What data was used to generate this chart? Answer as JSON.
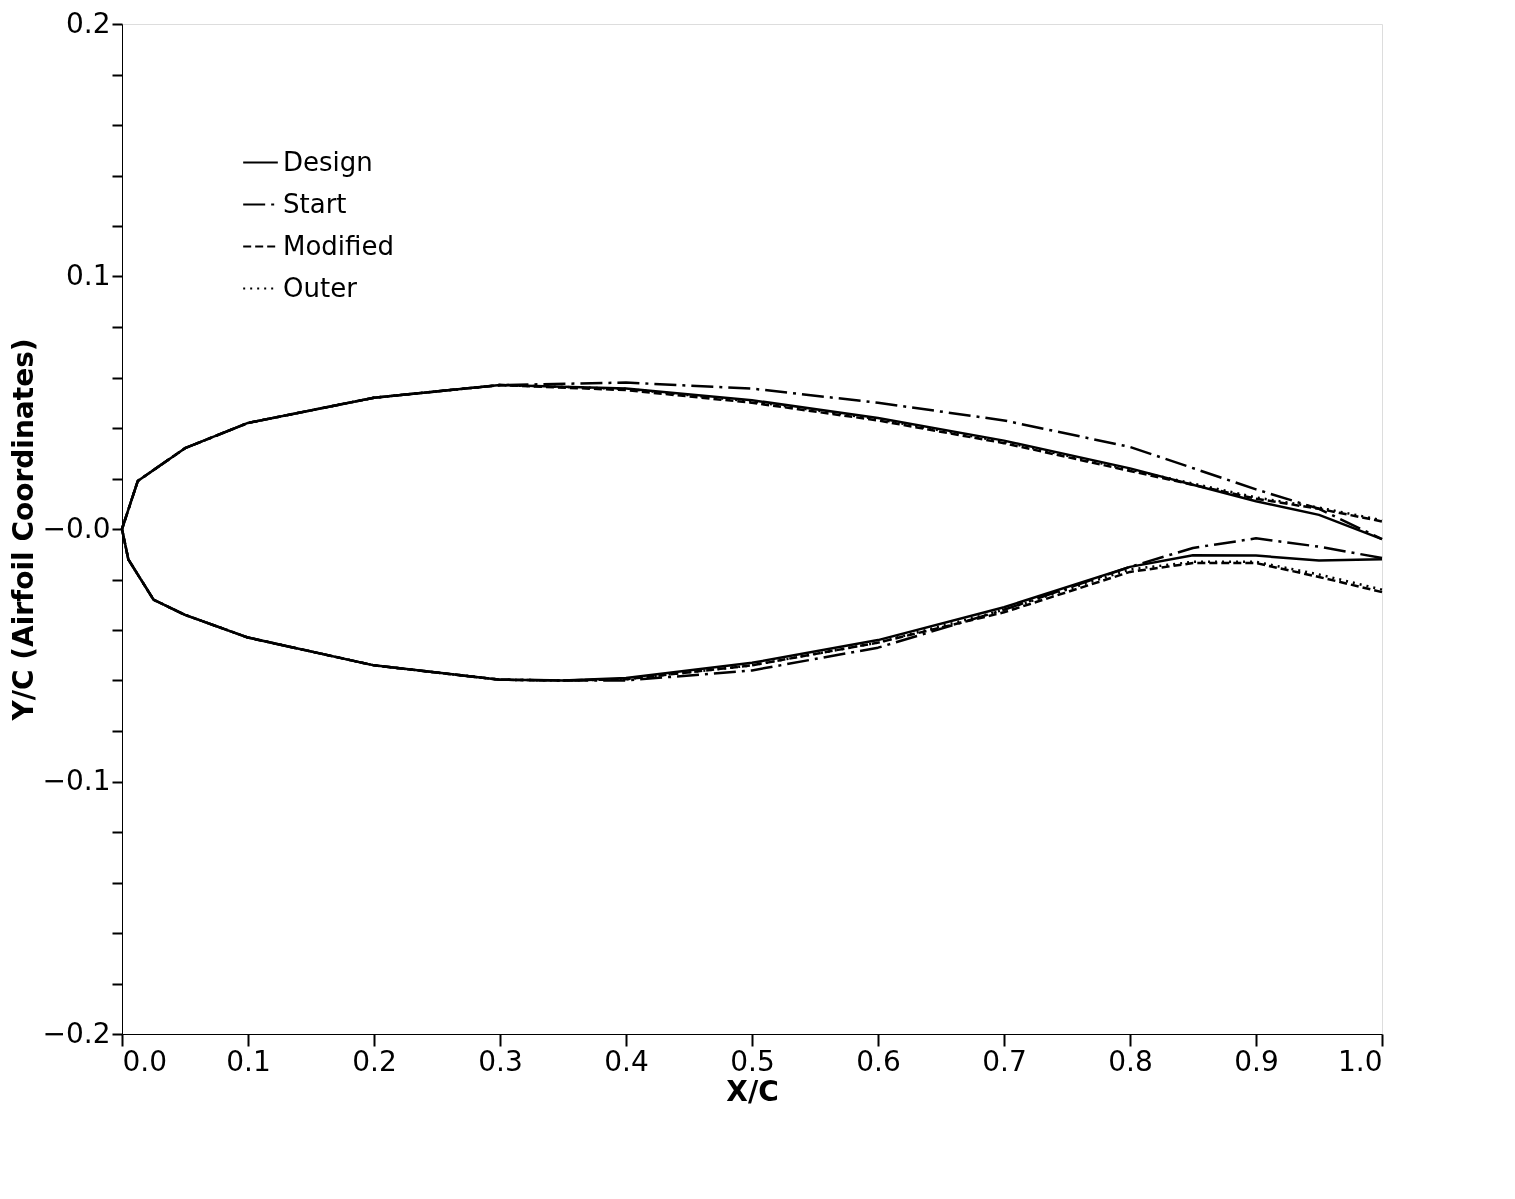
{
  "chart_data": {
    "type": "line",
    "xlabel": "X/C",
    "ylabel": "Y/C (Airfoil Coordinates)",
    "xlim": [
      0.0,
      1.0
    ],
    "ylim": [
      -0.2,
      0.2
    ],
    "xticks": [
      {
        "value": 0,
        "label": "0.0"
      },
      {
        "value": 0.1,
        "label": "0.1"
      },
      {
        "value": 0.2,
        "label": "0.2"
      },
      {
        "value": 0.3,
        "label": "0.3"
      },
      {
        "value": 0.4,
        "label": "0.4"
      },
      {
        "value": 0.5,
        "label": "0.5"
      },
      {
        "value": 0.6,
        "label": "0.6"
      },
      {
        "value": 0.7,
        "label": "0.7"
      },
      {
        "value": 0.8,
        "label": "0.8"
      },
      {
        "value": 0.9,
        "label": "0.9"
      },
      {
        "value": 1.0,
        "label": "1.0"
      }
    ],
    "yticks": [
      {
        "value": -0.2,
        "label": "−0.2"
      },
      {
        "value": -0.18,
        "label": null
      },
      {
        "value": -0.16,
        "label": null
      },
      {
        "value": -0.14,
        "label": null
      },
      {
        "value": -0.12,
        "label": null
      },
      {
        "value": -0.1,
        "label": "−0.1"
      },
      {
        "value": -0.08,
        "label": null
      },
      {
        "value": -0.06,
        "label": null
      },
      {
        "value": -0.04,
        "label": null
      },
      {
        "value": -0.02,
        "label": null
      },
      {
        "value": 0,
        "label": "−0.0"
      },
      {
        "value": 0.02,
        "label": null
      },
      {
        "value": 0.04,
        "label": null
      },
      {
        "value": 0.06,
        "label": null
      },
      {
        "value": 0.08,
        "label": null
      },
      {
        "value": 0.1,
        "label": "0.1"
      },
      {
        "value": 0.12,
        "label": null
      },
      {
        "value": 0.14,
        "label": null
      },
      {
        "value": 0.16,
        "label": null
      },
      {
        "value": 0.18,
        "label": null
      },
      {
        "value": 0.2,
        "label": "0.2"
      }
    ],
    "grid": false,
    "legend": "top left",
    "marker": "none",
    "series": [
      {
        "name": "Design",
        "color": "#000000",
        "line_style": "solid",
        "x": [
          1.0,
          0.95,
          0.9,
          0.85,
          0.8,
          0.7,
          0.6,
          0.5,
          0.4,
          0.35,
          0.3,
          0.2,
          0.1,
          0.05,
          0.025,
          0.005,
          0.0,
          0.0125,
          0.05,
          0.1,
          0.2,
          0.3,
          0.4,
          0.5,
          0.6,
          0.7,
          0.8,
          0.9,
          0.95,
          1.0
        ],
        "values": [
          -0.012,
          -0.0125,
          -0.0105,
          -0.0104,
          -0.015,
          -0.031,
          -0.044,
          -0.053,
          -0.059,
          -0.06,
          -0.0597,
          -0.054,
          -0.043,
          -0.034,
          -0.028,
          -0.012,
          0.0,
          0.019,
          0.032,
          0.042,
          0.052,
          0.057,
          0.0556,
          0.051,
          0.044,
          0.035,
          0.024,
          0.011,
          0.0056,
          -0.004
        ]
      },
      {
        "name": "Start",
        "color": "#000000",
        "line_style": "dashdot",
        "x": [
          1.0,
          0.95,
          0.9,
          0.85,
          0.8,
          0.7,
          0.6,
          0.5,
          0.4,
          0.35,
          0.3,
          0.2,
          0.1,
          0.05,
          0.025,
          0.005,
          0.0,
          0.0125,
          0.05,
          0.1,
          0.2,
          0.3,
          0.4,
          0.5,
          0.6,
          0.7,
          0.8,
          0.9,
          0.95,
          1.0
        ],
        "values": [
          -0.0115,
          -0.007,
          -0.0037,
          -0.0075,
          -0.015,
          -0.032,
          -0.047,
          -0.056,
          -0.06,
          -0.06,
          -0.0597,
          -0.054,
          -0.043,
          -0.034,
          -0.028,
          -0.012,
          0.0,
          0.019,
          0.032,
          0.042,
          0.052,
          0.057,
          0.058,
          0.0556,
          0.05,
          0.043,
          0.0325,
          0.0157,
          0.008,
          -0.004
        ]
      },
      {
        "name": "Modified",
        "color": "#000000",
        "line_style": "dashed",
        "x": [
          1.0,
          0.95,
          0.9,
          0.85,
          0.8,
          0.7,
          0.6,
          0.5,
          0.4,
          0.35,
          0.3,
          0.2,
          0.1,
          0.05,
          0.025,
          0.005,
          0.0,
          0.0125,
          0.05,
          0.1,
          0.2,
          0.3,
          0.4,
          0.5,
          0.6,
          0.7,
          0.8,
          0.9,
          0.95,
          1.0
        ],
        "values": [
          -0.025,
          -0.019,
          -0.0135,
          -0.0135,
          -0.017,
          -0.033,
          -0.045,
          -0.054,
          -0.0595,
          -0.06,
          -0.0597,
          -0.054,
          -0.043,
          -0.034,
          -0.028,
          -0.012,
          0.0,
          0.019,
          0.032,
          0.042,
          0.052,
          0.057,
          0.055,
          0.05,
          0.043,
          0.034,
          0.023,
          0.012,
          0.008,
          0.003
        ]
      },
      {
        "name": "Outer",
        "color": "#000000",
        "line_style": "dotted",
        "x": [
          1.0,
          0.95,
          0.9,
          0.85,
          0.8,
          0.7,
          0.6,
          0.5,
          0.4,
          0.35,
          0.3,
          0.2,
          0.1,
          0.05,
          0.025,
          0.005,
          0.0,
          0.0125,
          0.05,
          0.1,
          0.2,
          0.3,
          0.4,
          0.5,
          0.6,
          0.7,
          0.8,
          0.9,
          0.95,
          1.0
        ],
        "values": [
          -0.024,
          -0.018,
          -0.013,
          -0.013,
          -0.016,
          -0.032,
          -0.045,
          -0.054,
          -0.0595,
          -0.06,
          -0.0597,
          -0.054,
          -0.043,
          -0.034,
          -0.028,
          -0.012,
          0.0,
          0.019,
          0.032,
          0.042,
          0.052,
          0.057,
          0.0555,
          0.0505,
          0.0435,
          0.0345,
          0.0235,
          0.0125,
          0.0085,
          0.0035
        ]
      }
    ]
  }
}
